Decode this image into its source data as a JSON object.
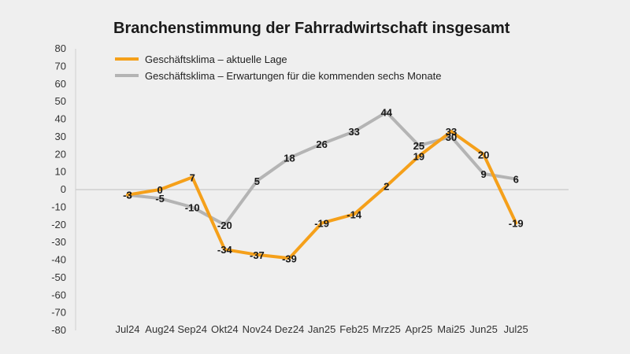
{
  "chart_data": {
    "type": "line",
    "title": "Branchenstimmung der Fahrradwirtschaft insgesamt",
    "categories": [
      "Jul24",
      "Aug24",
      "Sep24",
      "Okt24",
      "Nov24",
      "Dez24",
      "Jan25",
      "Feb25",
      "Mrz25",
      "Apr25",
      "Mai25",
      "Jun25",
      "Jul25"
    ],
    "ylim": [
      -80,
      80
    ],
    "yticks": [
      80,
      70,
      60,
      50,
      40,
      30,
      20,
      10,
      0,
      -10,
      -20,
      -30,
      -40,
      -50,
      -60,
      -70,
      -80
    ],
    "grid": false,
    "legend_position": "top-left",
    "series": [
      {
        "name": "Geschäftsklima – aktuelle Lage",
        "color": "#f5a01a",
        "values": [
          -3,
          0,
          7,
          -34,
          -37,
          -39,
          -19,
          -14,
          2,
          19,
          33,
          20,
          -19
        ]
      },
      {
        "name": "Geschäftsklima – Erwartungen für die kommenden sechs Monate",
        "color": "#b4b4b4",
        "values": [
          -3,
          -5,
          -10,
          -20,
          5,
          18,
          26,
          33,
          44,
          25,
          30,
          9,
          6
        ]
      }
    ]
  }
}
